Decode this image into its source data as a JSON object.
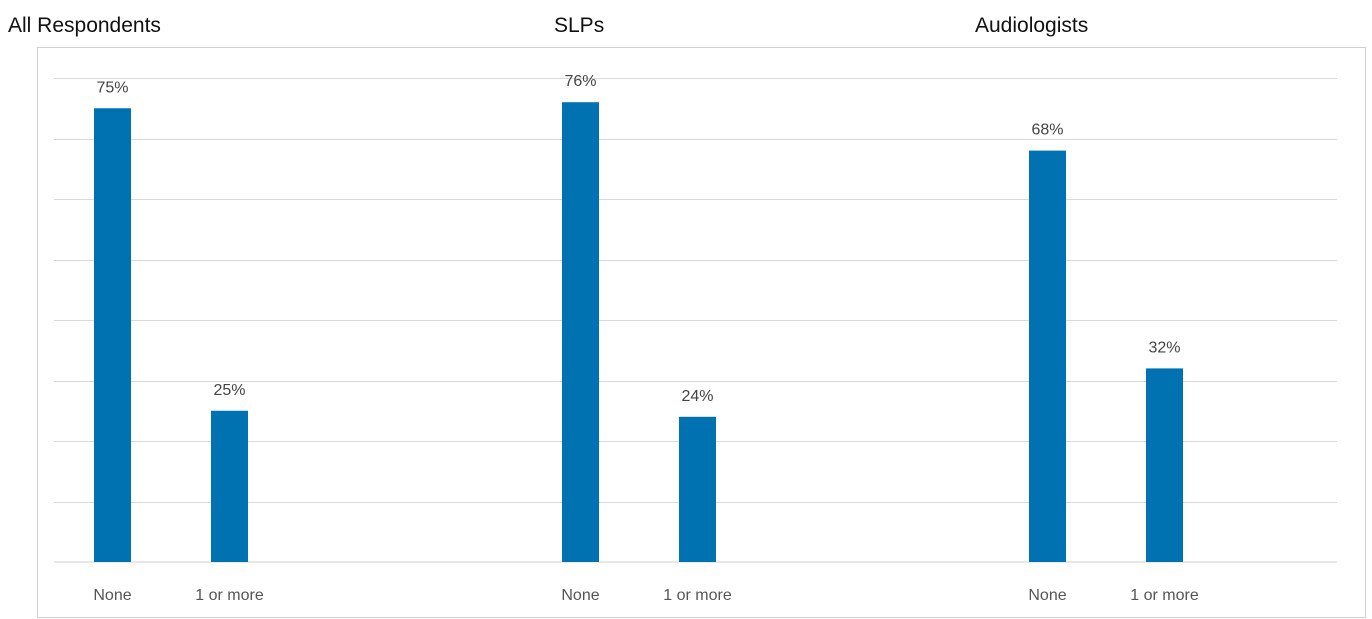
{
  "chart_data": [
    {
      "type": "bar",
      "title": "All Respondents",
      "categories": [
        "None",
        "1 or more"
      ],
      "values": [
        75,
        25
      ],
      "value_labels": [
        "75%",
        "25%"
      ],
      "ylim": [
        0,
        80
      ],
      "grid": true,
      "color": "#0072B2"
    },
    {
      "type": "bar",
      "title": "SLPs",
      "categories": [
        "None",
        "1 or more"
      ],
      "values": [
        76,
        24
      ],
      "value_labels": [
        "76%",
        "24%"
      ],
      "ylim": [
        0,
        80
      ],
      "grid": true,
      "color": "#0072B2"
    },
    {
      "type": "bar",
      "title": "Audiologists",
      "categories": [
        "None",
        "1 or more"
      ],
      "values": [
        68,
        32
      ],
      "value_labels": [
        "68%",
        "32%"
      ],
      "ylim": [
        0,
        80
      ],
      "grid": true,
      "color": "#0072B2"
    }
  ]
}
